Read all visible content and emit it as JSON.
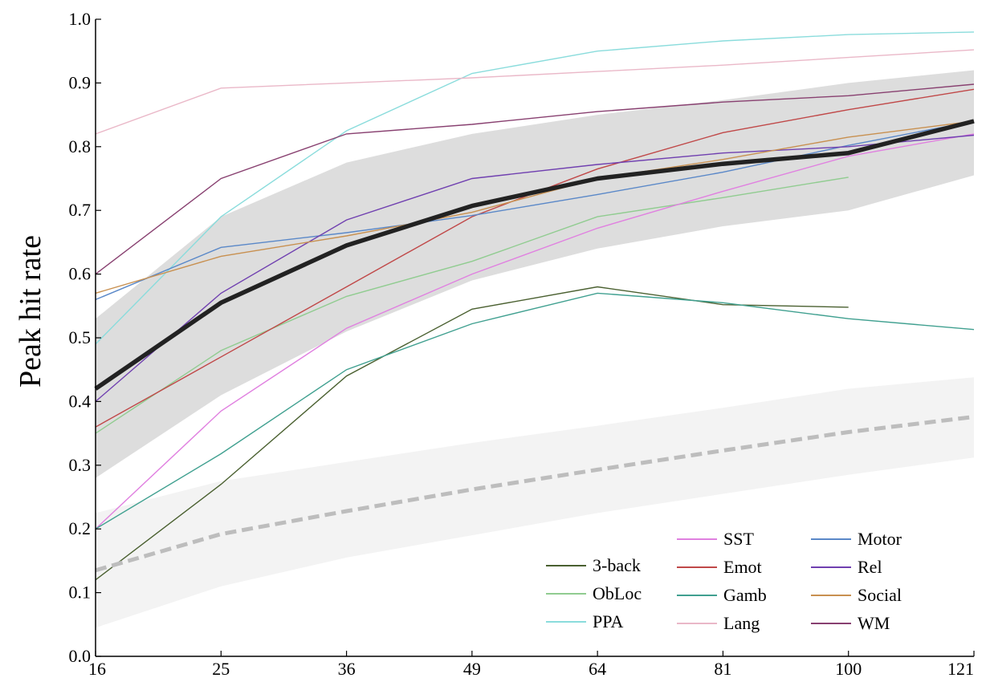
{
  "chart_data": {
    "type": "line",
    "title": "",
    "xlabel": "",
    "ylabel": "Peak hit rate",
    "x": [
      16,
      25,
      36,
      49,
      64,
      81,
      100,
      121
    ],
    "x_tick_labels": [
      "16",
      "25",
      "36",
      "49",
      "64",
      "81",
      "100",
      "121"
    ],
    "x_scale": "sqrt",
    "ylim": [
      0.0,
      1.0
    ],
    "y_ticks": [
      0.0,
      0.1,
      0.2,
      0.3,
      0.4,
      0.5,
      0.6,
      0.7,
      0.8,
      0.9,
      1.0
    ],
    "y_tick_labels": [
      "0.0",
      "0.1",
      "0.2",
      "0.3",
      "0.4",
      "0.5",
      "0.6",
      "0.7",
      "0.8",
      "0.9",
      "1.0"
    ],
    "grid": false,
    "legend_position": "bottom-right",
    "series": [
      {
        "name": "3-back",
        "color": "#4a6030",
        "values": [
          0.12,
          0.27,
          0.44,
          0.545,
          0.58,
          0.552,
          0.548,
          null
        ]
      },
      {
        "name": "ObLoc",
        "color": "#90cc90",
        "values": [
          0.35,
          0.48,
          0.565,
          0.62,
          0.69,
          0.72,
          0.752,
          null
        ]
      },
      {
        "name": "PPA",
        "color": "#8adcdc",
        "values": [
          0.49,
          0.69,
          0.825,
          0.915,
          0.95,
          0.966,
          0.976,
          0.98
        ]
      },
      {
        "name": "SST",
        "color": "#e080e0",
        "values": [
          0.2,
          0.385,
          0.515,
          0.6,
          0.672,
          0.73,
          0.785,
          0.82
        ]
      },
      {
        "name": "Emot",
        "color": "#c04848",
        "values": [
          0.36,
          0.47,
          0.58,
          0.69,
          0.765,
          0.822,
          0.858,
          0.89
        ]
      },
      {
        "name": "Gamb",
        "color": "#40a090",
        "values": [
          0.2,
          0.318,
          0.45,
          0.522,
          0.57,
          0.555,
          0.53,
          0.513
        ]
      },
      {
        "name": "Lang",
        "color": "#eab8c8",
        "values": [
          0.82,
          0.892,
          0.9,
          0.908,
          0.918,
          0.928,
          0.94,
          0.952
        ]
      },
      {
        "name": "Motor",
        "color": "#5a88c8",
        "values": [
          0.56,
          0.642,
          0.665,
          0.692,
          0.725,
          0.76,
          0.802,
          0.84
        ]
      },
      {
        "name": "Rel",
        "color": "#7040b0",
        "values": [
          0.4,
          0.57,
          0.685,
          0.75,
          0.772,
          0.79,
          0.8,
          0.818
        ]
      },
      {
        "name": "Social",
        "color": "#c89050",
        "values": [
          0.57,
          0.628,
          0.66,
          0.697,
          0.75,
          0.78,
          0.815,
          0.84
        ]
      },
      {
        "name": "WM",
        "color": "#884070",
        "values": [
          0.6,
          0.75,
          0.82,
          0.835,
          0.855,
          0.87,
          0.88,
          0.898
        ]
      }
    ],
    "mean_series": {
      "color": "#222222",
      "values": [
        0.42,
        0.555,
        0.645,
        0.707,
        0.75,
        0.773,
        0.79,
        0.84
      ]
    },
    "mean_band": {
      "color": "#dddddd",
      "lower": [
        0.28,
        0.41,
        0.51,
        0.59,
        0.64,
        0.675,
        0.7,
        0.755
      ],
      "upper": [
        0.53,
        0.69,
        0.775,
        0.82,
        0.85,
        0.873,
        0.9,
        0.92
      ]
    },
    "baseline_series": {
      "color": "#bdbdbd",
      "values": [
        0.135,
        0.192,
        0.228,
        0.262,
        0.293,
        0.323,
        0.352,
        0.376
      ]
    },
    "baseline_band": {
      "color": "#f3f3f3",
      "lower": [
        0.045,
        0.11,
        0.155,
        0.19,
        0.225,
        0.255,
        0.285,
        0.312
      ],
      "upper": [
        0.225,
        0.275,
        0.305,
        0.335,
        0.362,
        0.39,
        0.42,
        0.438
      ]
    },
    "legend_columns": [
      [
        "3-back",
        "ObLoc",
        "PPA"
      ],
      [
        "SST",
        "Emot",
        "Gamb",
        "Lang"
      ],
      [
        "Motor",
        "Rel",
        "Social",
        "WM"
      ]
    ]
  }
}
